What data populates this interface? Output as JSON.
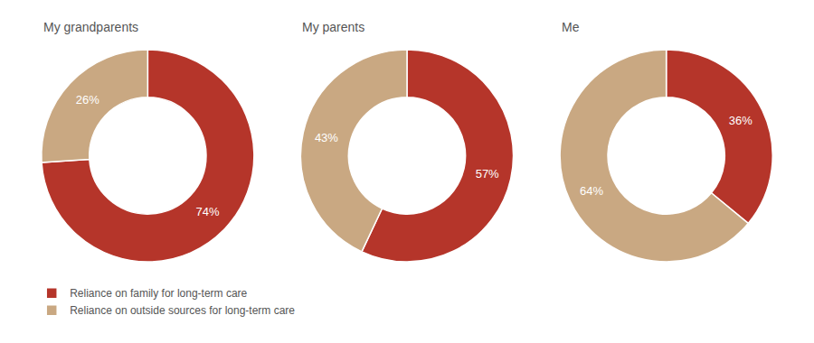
{
  "chart_data": [
    {
      "type": "pie",
      "title": "My grandparents",
      "categories": [
        "Reliance on family for long-term care",
        "Reliance on outside sources for long-term care"
      ],
      "values": [
        74,
        26
      ],
      "value_labels": [
        "74%",
        "26%"
      ],
      "colors": [
        "#b5352a",
        "#c9a882"
      ],
      "data_labels": true,
      "legend": "lower left"
    },
    {
      "type": "pie",
      "title": "My parents",
      "categories": [
        "Reliance on family for long-term care",
        "Reliance on outside sources for long-term care"
      ],
      "values": [
        57,
        43
      ],
      "value_labels": [
        "57%",
        "43%"
      ],
      "colors": [
        "#b5352a",
        "#c9a882"
      ],
      "data_labels": true,
      "legend": "lower left"
    },
    {
      "type": "pie",
      "title": "Me",
      "categories": [
        "Reliance on family for long-term care",
        "Reliance on outside sources for long-term care"
      ],
      "values": [
        36,
        64
      ],
      "value_labels": [
        "36%",
        "64%"
      ],
      "colors": [
        "#b5352a",
        "#c9a882"
      ],
      "data_labels": true,
      "legend": "lower left"
    }
  ]
}
